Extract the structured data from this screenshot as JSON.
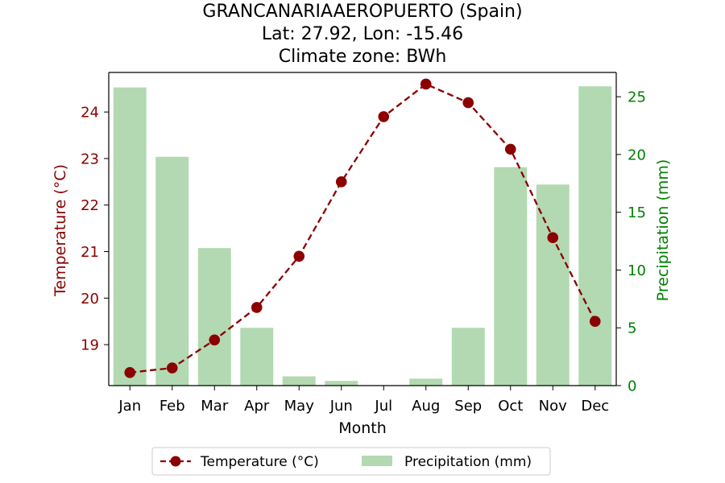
{
  "chart_data": {
    "type": "bar+line",
    "title": "GRANCANARIAAEROPUERTO (Spain)",
    "subtitle": "Lat: 27.92, Lon: -15.46",
    "subtitle2": "Climate zone: BWh",
    "xlabel": "Month",
    "ylabel_left": "Temperature (°C)",
    "ylabel_right": "Precipitation (mm)",
    "categories": [
      "Jan",
      "Feb",
      "Mar",
      "Apr",
      "May",
      "Jun",
      "Jul",
      "Aug",
      "Sep",
      "Oct",
      "Nov",
      "Dec"
    ],
    "series": [
      {
        "name": "Temperature (°C)",
        "type": "line",
        "axis": "left",
        "values": [
          18.4,
          18.5,
          19.1,
          19.8,
          20.9,
          22.5,
          23.9,
          24.6,
          24.2,
          23.2,
          21.3,
          19.5
        ]
      },
      {
        "name": "Precipitation (mm)",
        "type": "bar",
        "axis": "right",
        "values": [
          25.8,
          19.8,
          11.9,
          5.0,
          0.8,
          0.4,
          0.0,
          0.6,
          5.0,
          18.9,
          17.4,
          25.9
        ]
      }
    ],
    "ylim_left": [
      18.12,
      24.85
    ],
    "ylim_right": [
      0,
      27.1
    ],
    "yticks_left": [
      19,
      20,
      21,
      22,
      23,
      24
    ],
    "yticks_right": [
      0,
      5,
      10,
      15,
      20,
      25
    ],
    "legend_position": "bottom-center",
    "grid": false,
    "colors": {
      "temperature": "#8b0000",
      "precipitation": "#b2d9b2",
      "precip_axis": "#008000",
      "axis": "#000000"
    }
  }
}
